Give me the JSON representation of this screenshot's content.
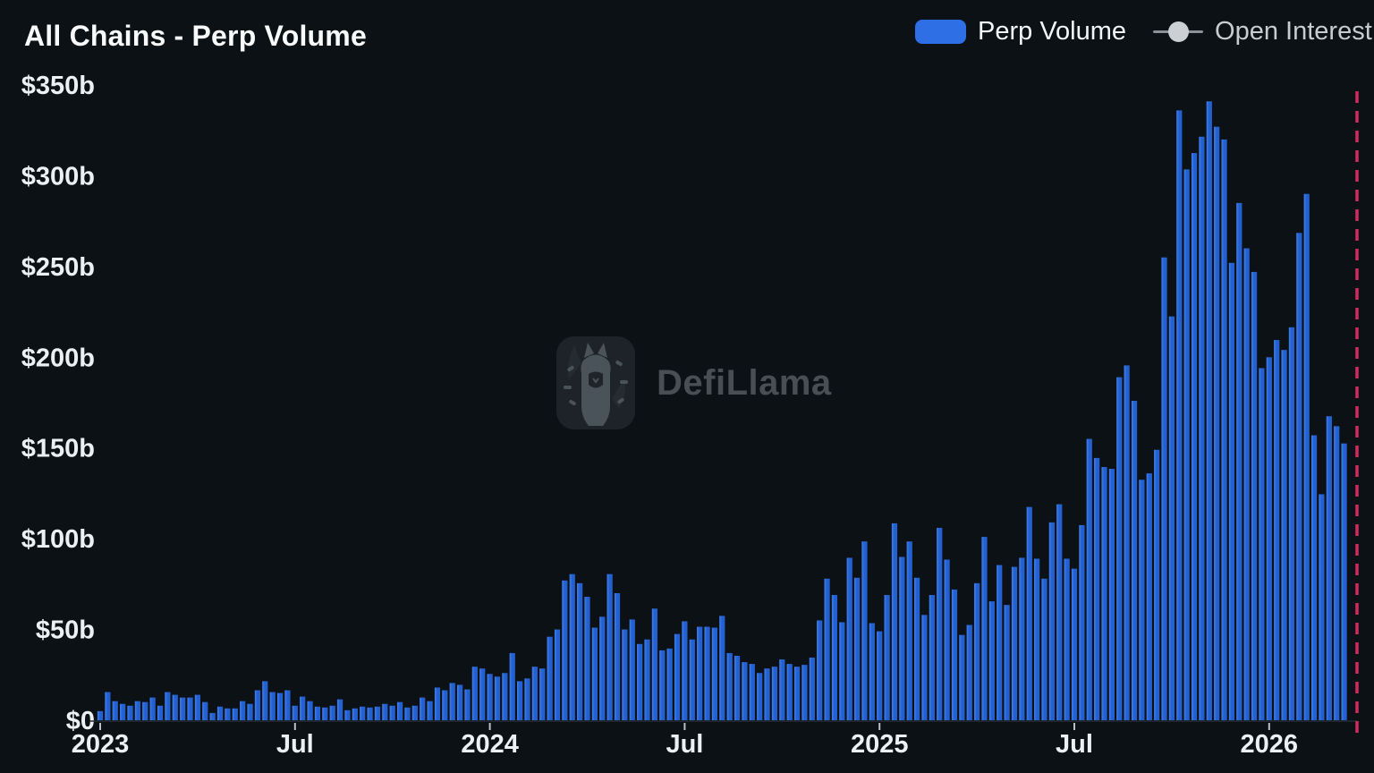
{
  "title": "All Chains - Perp Volume",
  "legend": {
    "perp_volume_label": "Perp Volume",
    "open_interest_label": "Open Interest"
  },
  "watermark": "DefiLlama",
  "colors": {
    "background": "#0b1115",
    "bar": "#2361d2",
    "bar_edge": "#4480ea",
    "legend_swatch": "#2f6fe6",
    "open_interest_marker": "#ccd0d5",
    "axis_label": "#edf0f3",
    "dashed_line": "#d22a5e",
    "baseline": "#232d35",
    "tick": "#b9c0c6"
  },
  "chart_data": {
    "type": "bar",
    "title": "All Chains - Perp Volume",
    "xlabel": "",
    "ylabel": "",
    "unit": "$ billions",
    "frequency": "weekly",
    "ylim": [
      0,
      350
    ],
    "grid": false,
    "legend_position": "top-right",
    "right_edge_dashed_line": true,
    "y_ticks": {
      "values": [
        0,
        50,
        100,
        150,
        200,
        250,
        300,
        350
      ],
      "labels": [
        "$0",
        "$50b",
        "$100b",
        "$150b",
        "$200b",
        "$250b",
        "$300b",
        "$350b"
      ]
    },
    "x_ticks": {
      "week_indices": [
        0,
        26,
        52,
        78,
        104,
        130,
        156
      ],
      "labels": [
        "2023",
        "Jul",
        "2024",
        "Jul",
        "2025",
        "Jul",
        "2026"
      ]
    },
    "series": [
      {
        "name": "Perp Volume",
        "values": [
          5,
          15.5,
          10.5,
          9,
          8,
          10.5,
          10,
          12.5,
          8,
          15.5,
          14,
          12.5,
          12.5,
          14,
          10,
          4,
          7.5,
          6.5,
          6.5,
          10.5,
          9,
          16.5,
          21.5,
          15.5,
          15,
          16.5,
          8,
          13,
          10.5,
          7.5,
          7,
          8,
          11.5,
          5.5,
          6.5,
          7.5,
          7,
          7.5,
          9,
          8,
          10,
          7,
          8,
          12.5,
          10.5,
          18,
          16.5,
          20.5,
          19.5,
          17,
          29.5,
          28.5,
          25.5,
          24,
          26,
          37,
          21.5,
          23,
          29.5,
          28.5,
          46,
          50,
          77,
          80.5,
          75.5,
          68,
          51,
          57,
          80.5,
          70,
          50,
          55.5,
          42,
          44.5,
          61.5,
          38.5,
          39.5,
          47.5,
          54.5,
          44.5,
          51.5,
          51.5,
          51,
          57.5,
          37,
          35.5,
          32,
          31,
          26,
          28.5,
          29.5,
          33.5,
          31,
          29.5,
          30.5,
          34.5,
          55,
          78,
          69,
          54,
          89.5,
          78.5,
          98.5,
          53.5,
          49,
          69,
          108.5,
          90,
          98.5,
          78.5,
          58,
          69,
          106,
          88.5,
          72,
          47,
          52.5,
          75.5,
          101,
          65.5,
          85.5,
          63.5,
          84.5,
          89.5,
          117.5,
          89,
          78,
          109,
          119,
          89,
          83.5,
          107.5,
          155,
          144.5,
          139.5,
          138.5,
          189,
          195.5,
          176,
          132.5,
          136,
          149,
          255,
          222.5,
          336,
          303.5,
          312.5,
          321.5,
          341,
          327,
          320,
          252,
          285,
          260,
          247,
          194,
          200,
          209.5,
          204,
          216.5,
          268.5,
          290,
          157,
          124.5,
          167.5,
          162,
          152.5
        ]
      },
      {
        "name": "Open Interest",
        "values": []
      }
    ]
  }
}
